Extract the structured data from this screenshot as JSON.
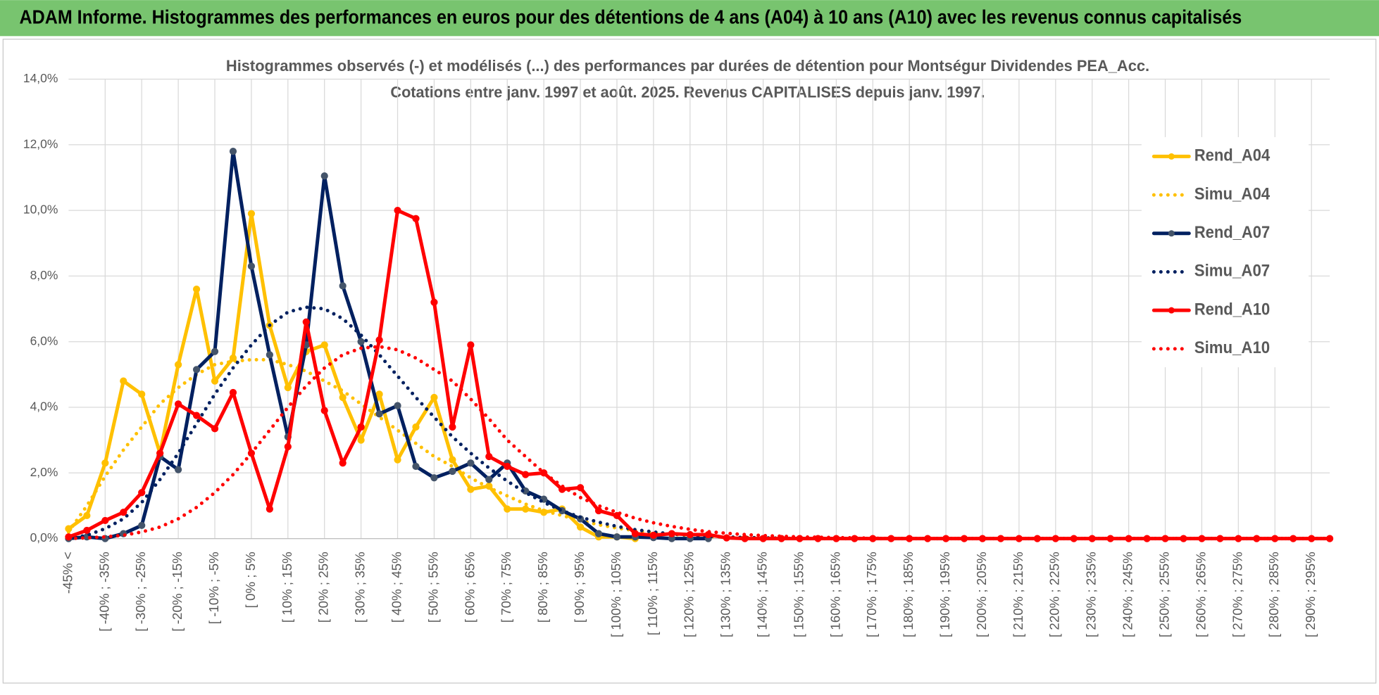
{
  "header": {
    "title": "ADAM Informe. Histogrammes des performances en euros pour des détentions de 4 ans (A04) à 10 ans (A10) avec les revenus connus capitalisés"
  },
  "chart_data": {
    "type": "line",
    "title": [
      "Histogrammes observés (-) et modélisés (...) des performances par durées de détention pour Montségur Dividendes PEA_Acc.",
      "Cotations entre janv. 1997 et août. 2025. Revenus CAPITALISES depuis janv. 1997."
    ],
    "categories": [
      "-45% <",
      null,
      "[ -40% ; -35%",
      null,
      "[ -30% ; -25%",
      null,
      "[ -20% ; -15%",
      null,
      "[ -10% ; -5%",
      null,
      "[ 0% ; 5%",
      null,
      "[ 10% ; 15%",
      null,
      "[ 20% ; 25%",
      null,
      "[ 30% ; 35%",
      null,
      "[ 40% ; 45%",
      null,
      "[ 50% ; 55%",
      null,
      "[ 60% ; 65%",
      null,
      "[ 70% ; 75%",
      null,
      "[ 80% ; 85%",
      null,
      "[ 90% ; 95%",
      null,
      "[ 100% ; 105%",
      null,
      "[ 110% ; 115%",
      null,
      "[ 120% ; 125%",
      null,
      "[ 130% ; 135%",
      null,
      "[ 140% ; 145%",
      null,
      "[ 150% ; 155%",
      null,
      "[ 160% ; 165%",
      null,
      "[ 170% ; 175%",
      null,
      "[ 180% ; 185%",
      null,
      "[ 190% ; 195%",
      null,
      "[ 200% ; 205%",
      null,
      "[ 210% ; 215%",
      null,
      "[ 220% ; 225%",
      null,
      "[ 230% ; 235%",
      null,
      "[ 240% ; 245%",
      null,
      "[ 250% ; 255%",
      null,
      "[ 260% ; 265%",
      null,
      "[ 270% ; 275%",
      null,
      "[ 280% ; 285%",
      null,
      "[ 290% ; 295%",
      null
    ],
    "ylim": [
      0,
      14
    ],
    "yticks": [
      {
        "value": 0,
        "label": "0,0%"
      },
      {
        "value": 2,
        "label": "2,0%"
      },
      {
        "value": 4,
        "label": "4,0%"
      },
      {
        "value": 6,
        "label": "6,0%"
      },
      {
        "value": 8,
        "label": "8,0%"
      },
      {
        "value": 10,
        "label": "10,0%"
      },
      {
        "value": 12,
        "label": "12,0%"
      },
      {
        "value": 14,
        "label": "14,0%"
      }
    ],
    "grid": true,
    "legend_position": "right",
    "series": [
      {
        "name": "Rend_A04",
        "color": "#FFC000",
        "style": "solid",
        "marker": true,
        "marker_color": "#FFC000",
        "values": [
          0.3,
          0.7,
          2.3,
          4.8,
          4.4,
          2.6,
          5.3,
          7.6,
          4.8,
          5.5,
          9.9,
          6.5,
          4.6,
          5.7,
          5.9,
          4.3,
          3.0,
          4.4,
          2.4,
          3.4,
          4.3,
          2.4,
          1.5,
          1.6,
          0.9,
          0.9,
          0.8,
          0.9,
          0.35,
          0.05,
          0.05,
          0.0,
          null,
          null,
          null,
          null,
          null,
          null,
          null,
          null,
          null,
          null,
          null,
          null,
          null,
          null,
          null,
          null,
          null,
          null,
          null,
          null,
          null,
          null,
          null,
          null,
          null,
          null,
          null,
          null,
          null,
          null,
          null,
          null,
          null,
          null,
          null,
          null,
          null,
          null
        ]
      },
      {
        "name": "Simu_A04",
        "color": "#FFC000",
        "style": "dotted",
        "marker": false,
        "values": [
          0.2,
          1.0,
          1.9,
          2.7,
          3.4,
          4.1,
          4.6,
          5.0,
          5.3,
          5.4,
          5.45,
          5.45,
          5.3,
          5.1,
          4.8,
          4.5,
          4.1,
          3.7,
          3.3,
          2.9,
          2.5,
          2.2,
          1.85,
          1.55,
          1.3,
          1.05,
          0.85,
          0.7,
          0.55,
          0.42,
          0.32,
          0.24,
          0.18,
          0.13,
          0.09,
          0.06,
          0.04,
          0.03,
          0.02,
          0.01,
          0,
          0,
          0,
          0,
          0,
          0,
          0,
          0,
          0,
          0,
          0,
          0,
          0,
          0,
          0,
          0,
          0,
          0,
          0,
          0,
          0,
          0,
          0,
          0,
          0,
          0,
          0,
          0,
          0,
          0
        ]
      },
      {
        "name": "Rend_A07",
        "color": "#002060",
        "style": "solid",
        "marker": true,
        "marker_color": "#44546A",
        "values": [
          0.0,
          0.05,
          0.0,
          0.15,
          0.4,
          2.5,
          2.1,
          5.15,
          5.7,
          11.8,
          8.3,
          5.6,
          3.1,
          5.9,
          11.05,
          7.7,
          6.0,
          3.8,
          4.05,
          2.2,
          1.85,
          2.05,
          2.3,
          1.8,
          2.3,
          1.45,
          1.2,
          0.85,
          0.6,
          0.15,
          0.05,
          0.05,
          0.03,
          0.0,
          0.0,
          0.0,
          null,
          null,
          null,
          null,
          null,
          null,
          null,
          null,
          null,
          null,
          null,
          null,
          null,
          null,
          null,
          null,
          null,
          null,
          null,
          null,
          null,
          null,
          null,
          null,
          null,
          null,
          null,
          null,
          null,
          null,
          null,
          null,
          null,
          null
        ]
      },
      {
        "name": "Simu_A07",
        "color": "#002060",
        "style": "dotted",
        "marker": false,
        "values": [
          0.0,
          0.1,
          0.3,
          0.6,
          1.1,
          1.8,
          2.6,
          3.5,
          4.4,
          5.2,
          5.9,
          6.5,
          6.9,
          7.05,
          7.0,
          6.7,
          6.2,
          5.6,
          4.95,
          4.3,
          3.7,
          3.1,
          2.6,
          2.15,
          1.75,
          1.4,
          1.1,
          0.85,
          0.65,
          0.5,
          0.37,
          0.27,
          0.2,
          0.14,
          0.1,
          0.07,
          0.05,
          0.03,
          0.02,
          0.01,
          0,
          0,
          0,
          0,
          0,
          0,
          0,
          0,
          0,
          0,
          0,
          0,
          0,
          0,
          0,
          0,
          0,
          0,
          0,
          0,
          0,
          0,
          0,
          0,
          0,
          0,
          0,
          0,
          0,
          0
        ]
      },
      {
        "name": "Rend_A10",
        "color": "#FF0000",
        "style": "solid",
        "marker": true,
        "marker_color": "#FF0000",
        "values": [
          0.05,
          0.25,
          0.55,
          0.8,
          1.4,
          2.6,
          4.1,
          3.75,
          3.35,
          4.45,
          2.6,
          0.9,
          2.8,
          6.6,
          3.9,
          2.3,
          3.4,
          6.05,
          10.0,
          9.75,
          7.2,
          3.4,
          5.9,
          2.5,
          2.2,
          1.95,
          2.0,
          1.5,
          1.55,
          0.85,
          0.7,
          0.15,
          0.1,
          0.15,
          0.12,
          0.12,
          0.02,
          0,
          0,
          0,
          0,
          0,
          0,
          0,
          0,
          0,
          0,
          0,
          0,
          0,
          0,
          0,
          0,
          0,
          0,
          0,
          0,
          0,
          0,
          0,
          0,
          0,
          0,
          0,
          0,
          0,
          0,
          0,
          0,
          0
        ]
      },
      {
        "name": "Simu_A10",
        "color": "#FF0000",
        "style": "dotted",
        "marker": false,
        "values": [
          0,
          0.02,
          0.05,
          0.1,
          0.2,
          0.35,
          0.6,
          0.95,
          1.4,
          1.95,
          2.6,
          3.3,
          4.0,
          4.65,
          5.2,
          5.6,
          5.8,
          5.85,
          5.75,
          5.5,
          5.15,
          4.8,
          4.25,
          3.65,
          3.0,
          2.5,
          2.0,
          1.6,
          1.25,
          1.0,
          0.8,
          0.62,
          0.48,
          0.37,
          0.28,
          0.21,
          0.16,
          0.12,
          0.09,
          0.07,
          0.05,
          0.04,
          0.03,
          0.02,
          0.01,
          0,
          0,
          0,
          0,
          0,
          0,
          0,
          0,
          0,
          0,
          0,
          0,
          0,
          0,
          0,
          0,
          0,
          0,
          0,
          0,
          0,
          0,
          0,
          0,
          0
        ]
      }
    ]
  }
}
